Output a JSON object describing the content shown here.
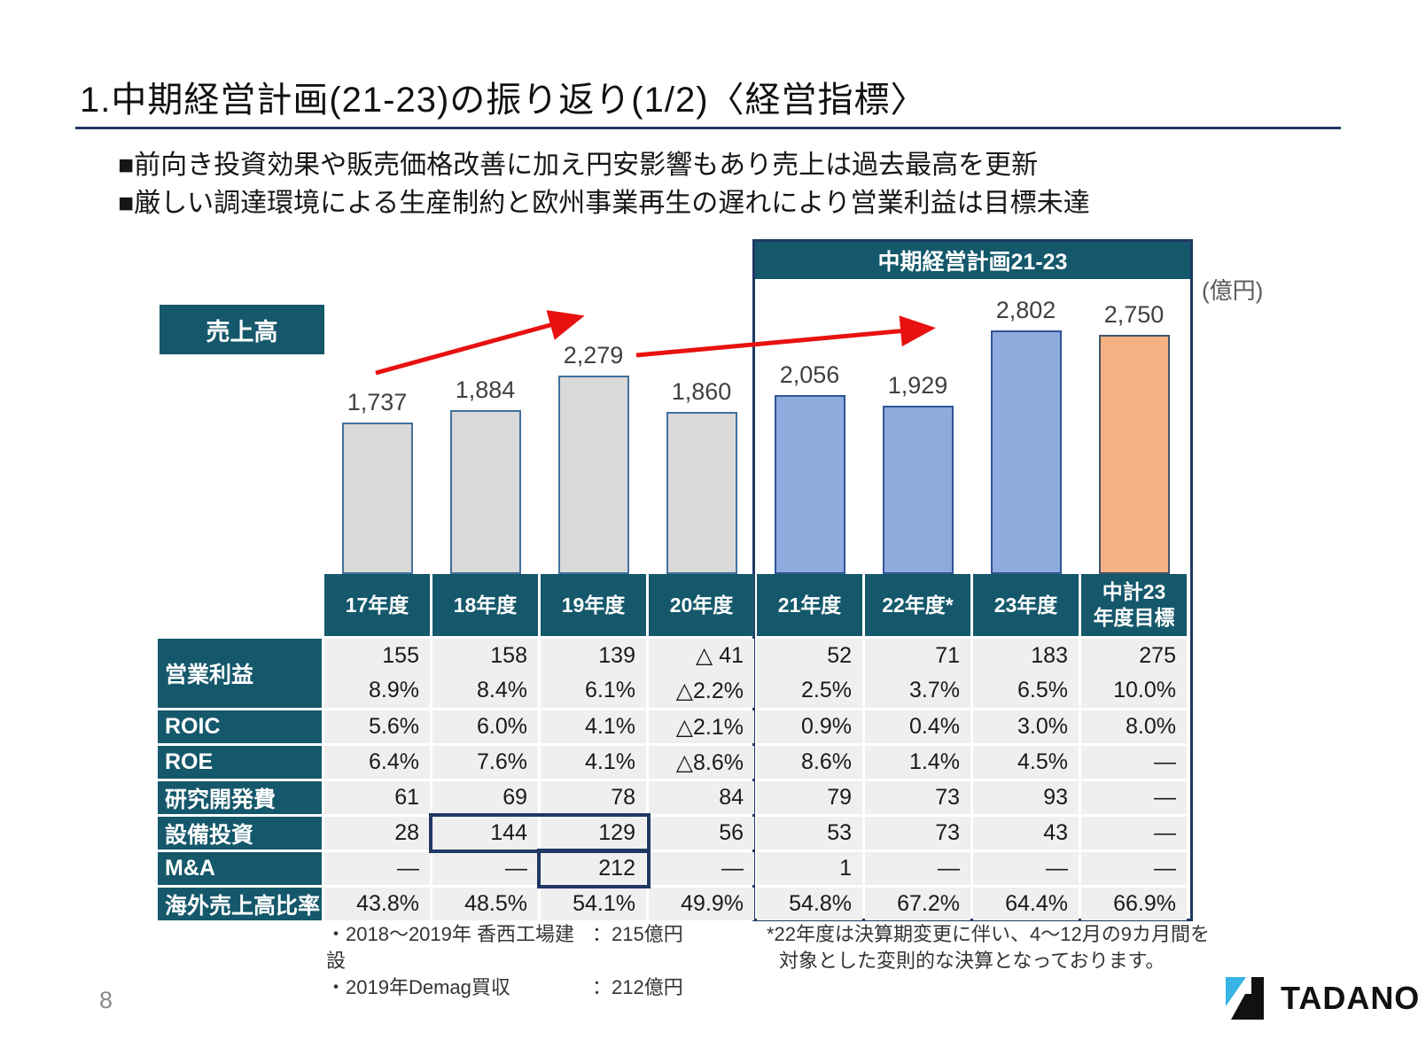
{
  "slide": {
    "title": "1.中期経営計画(21-23)の振り返り(1/2)〈経営指標〉",
    "bullets": [
      "■前向き投資効果や販売価格改善に加え円安影響もあり売上は過去最高を更新",
      "■厳しい調達環境による生産制約と欧州事業再生の遅れにより営業利益は目標未達"
    ],
    "page_number": "8",
    "logo_text": "TADANO"
  },
  "colors": {
    "teal": "#15586B",
    "navy": "#1F3864",
    "red": "#E81111",
    "cell_bg": "#EFEFEF",
    "logo_cyan": "#35B4E5",
    "bars": {
      "past": {
        "fill": "#D9D9D9",
        "border": "#41719C"
      },
      "plan": {
        "fill": "#8FAADC",
        "border": "#2F5597"
      },
      "target": {
        "fill": "#F4B183",
        "border": "#44546A"
      }
    }
  },
  "chart_data": {
    "type": "bar",
    "title": "売上高",
    "unit": "(億円)",
    "group_box_label": "中期経営計画21-23",
    "categories": [
      "17年度",
      "18年度",
      "19年度",
      "20年度",
      "21年度",
      "22年度*",
      "23年度",
      "中計23年度目標"
    ],
    "values": [
      1737,
      1884,
      2279,
      1860,
      2056,
      1929,
      2802,
      2750
    ],
    "value_labels": [
      "1,737",
      "1,884",
      "2,279",
      "1,860",
      "2,056",
      "1,929",
      "2,802",
      "2,750"
    ],
    "groups": [
      "past",
      "past",
      "past",
      "past",
      "plan",
      "plan",
      "plan",
      "target"
    ],
    "ylim": [
      0,
      3000
    ],
    "grid": false,
    "annotations": [
      "上昇トレンド矢印(17→19年度)",
      "上昇トレンド矢印(20→23年度)"
    ]
  },
  "table": {
    "headers": [
      "17年度",
      "18年度",
      "19年度",
      "20年度",
      "21年度",
      "22年度*",
      "23年度",
      "中計23\n年度目標"
    ],
    "rows": [
      {
        "label": "営業利益",
        "line1": [
          "155",
          "158",
          "139",
          "△ 41",
          "52",
          "71",
          "183",
          "275"
        ],
        "line2": [
          "8.9%",
          "8.4%",
          "6.1%",
          "△2.2%",
          "2.5%",
          "3.7%",
          "6.5%",
          "10.0%"
        ]
      },
      {
        "label": "ROIC",
        "line1": [
          "5.6%",
          "6.0%",
          "4.1%",
          "△2.1%",
          "0.9%",
          "0.4%",
          "3.0%",
          "8.0%"
        ]
      },
      {
        "label": "ROE",
        "line1": [
          "6.4%",
          "7.6%",
          "4.1%",
          "△8.6%",
          "8.6%",
          "1.4%",
          "4.5%",
          "—"
        ]
      },
      {
        "label": "研究開発費",
        "line1": [
          "61",
          "69",
          "78",
          "84",
          "79",
          "73",
          "93",
          "—"
        ]
      },
      {
        "label": "設備投資",
        "line1": [
          "28",
          "144",
          "129",
          "56",
          "53",
          "73",
          "43",
          "—"
        ]
      },
      {
        "label": "M&A",
        "line1": [
          "—",
          "—",
          "212",
          "—",
          "1",
          "—",
          "—",
          "—"
        ]
      },
      {
        "label": "海外売上高比率",
        "line1": [
          "43.8%",
          "48.5%",
          "54.1%",
          "49.9%",
          "54.8%",
          "67.2%",
          "64.4%",
          "66.9%"
        ]
      }
    ]
  },
  "notes": {
    "left": [
      {
        "name": "・2018～2019年 香西工場建設",
        "amount": "：215億円"
      },
      {
        "name": "・2019年Demag買収",
        "amount": "：212億円"
      }
    ],
    "right_line1": "*22年度は決算期変更に伴い、4～12月の9カ月間を",
    "right_line2": "対象とした変則的な決算となっております。"
  }
}
